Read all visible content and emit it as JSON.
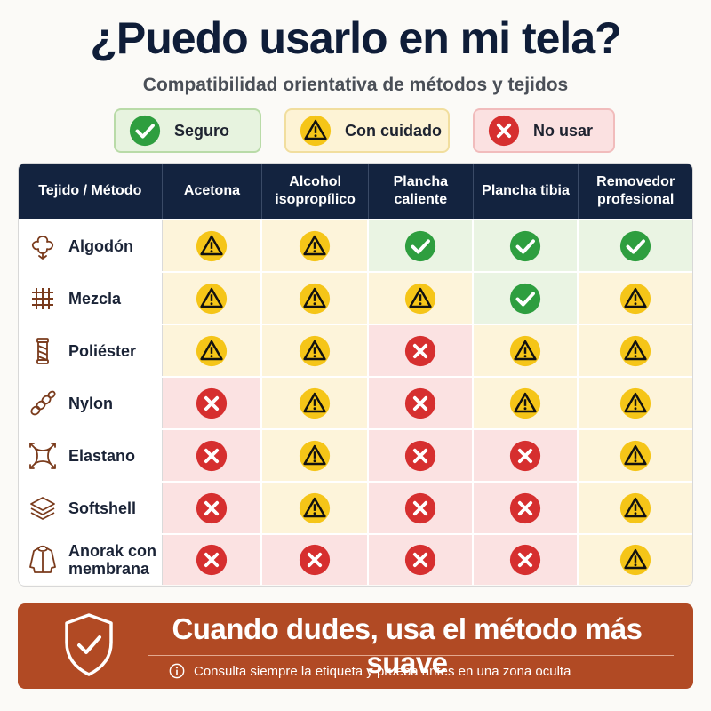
{
  "title": "¿Puedo usarlo en mi tela?",
  "subtitle": "Compatibilidad orientativa de métodos y tejidos",
  "legend": {
    "safe": "Seguro",
    "care": "Con cuidado",
    "no": "No usar"
  },
  "colors": {
    "safe": "#2e9e3f",
    "care": "#f5c518",
    "no": "#d62f2f",
    "header": "#13233f",
    "banner": "#b14a24"
  },
  "table": {
    "corner": "Tejido / Método",
    "methods": [
      "Acetona",
      "Alcohol isopropílico",
      "Plancha caliente",
      "Plancha tibia",
      "Removedor profesional"
    ],
    "rows": [
      {
        "fabric": "Algodón",
        "icon": "cotton-icon",
        "ratings": [
          "care",
          "care",
          "safe",
          "safe",
          "safe"
        ]
      },
      {
        "fabric": "Mezcla",
        "icon": "weave-icon",
        "ratings": [
          "care",
          "care",
          "care",
          "safe",
          "care"
        ]
      },
      {
        "fabric": "Poliéster",
        "icon": "thread-spool-icon",
        "ratings": [
          "care",
          "care",
          "no",
          "care",
          "care"
        ]
      },
      {
        "fabric": "Nylon",
        "icon": "rope-icon",
        "ratings": [
          "no",
          "care",
          "no",
          "care",
          "care"
        ]
      },
      {
        "fabric": "Elastano",
        "icon": "stretch-icon",
        "ratings": [
          "no",
          "care",
          "no",
          "no",
          "care"
        ]
      },
      {
        "fabric": "Softshell",
        "icon": "layers-icon",
        "ratings": [
          "no",
          "care",
          "no",
          "no",
          "care"
        ]
      },
      {
        "fabric": "Anorak con membrana",
        "icon": "jacket-icon",
        "ratings": [
          "no",
          "no",
          "no",
          "no",
          "care"
        ]
      }
    ]
  },
  "banner": {
    "headline": "Cuando dudes, usa el método más suave",
    "note": "Consulta siempre la etiqueta y prueba antes en una zona oculta",
    "icon": "shield-check-icon",
    "note_icon": "info-icon"
  }
}
